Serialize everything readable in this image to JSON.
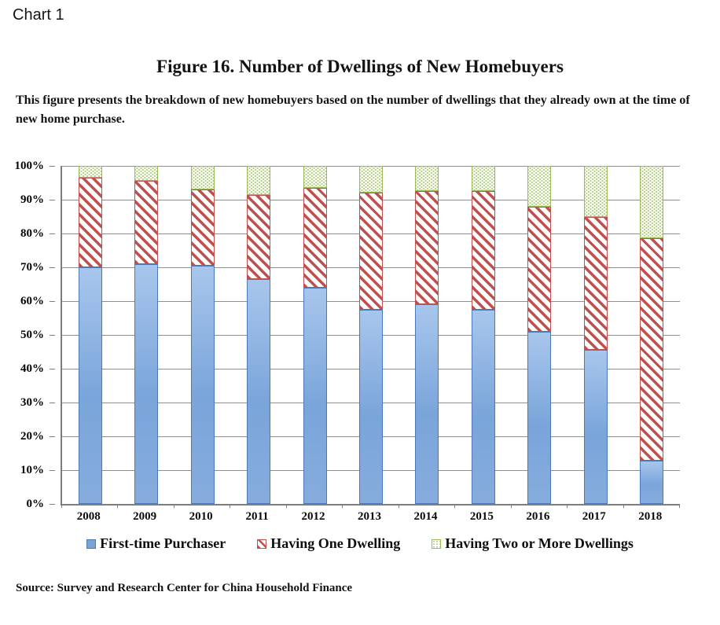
{
  "page": {
    "chart_label": "Chart 1",
    "title": "Figure 16. Number of Dwellings of New Homebuyers",
    "description": "This figure presents the breakdown of new homebuyers based on the number of dwellings that they already own at the time of new home purchase.",
    "source": "Source: Survey and Research Center for China Household Finance"
  },
  "chart_data": {
    "type": "bar",
    "stacked": true,
    "title": "Figure 16. Number of Dwellings of New Homebuyers",
    "categories": [
      "2008",
      "2009",
      "2010",
      "2011",
      "2012",
      "2013",
      "2014",
      "2015",
      "2016",
      "2017",
      "2018"
    ],
    "series": [
      {
        "name": "First-time Purchaser",
        "pattern": "solid",
        "color": "#7ba3d8",
        "values": [
          70,
          71,
          70.5,
          66.5,
          64,
          57.5,
          59,
          57.5,
          51,
          45.5,
          12.7
        ]
      },
      {
        "name": "Having One Dwelling",
        "pattern": "diagonal-stripes",
        "color": "#c0504d",
        "values": [
          26.5,
          24.5,
          22.5,
          25,
          29.5,
          34.5,
          33.5,
          35,
          37,
          39.5,
          65.8
        ]
      },
      {
        "name": "Having Two or More Dwellings",
        "pattern": "dots",
        "color": "#9bbb59",
        "values": [
          3.5,
          4.5,
          7,
          8.5,
          6.5,
          8,
          7.5,
          7.5,
          12,
          15,
          21.5
        ]
      }
    ],
    "xlabel": "",
    "ylabel": "",
    "ylim": [
      0,
      100
    ],
    "yticks": [
      "0%",
      "10%",
      "20%",
      "30%",
      "40%",
      "50%",
      "60%",
      "70%",
      "80%",
      "90%",
      "100%"
    ],
    "grid": true,
    "legend_position": "bottom"
  }
}
